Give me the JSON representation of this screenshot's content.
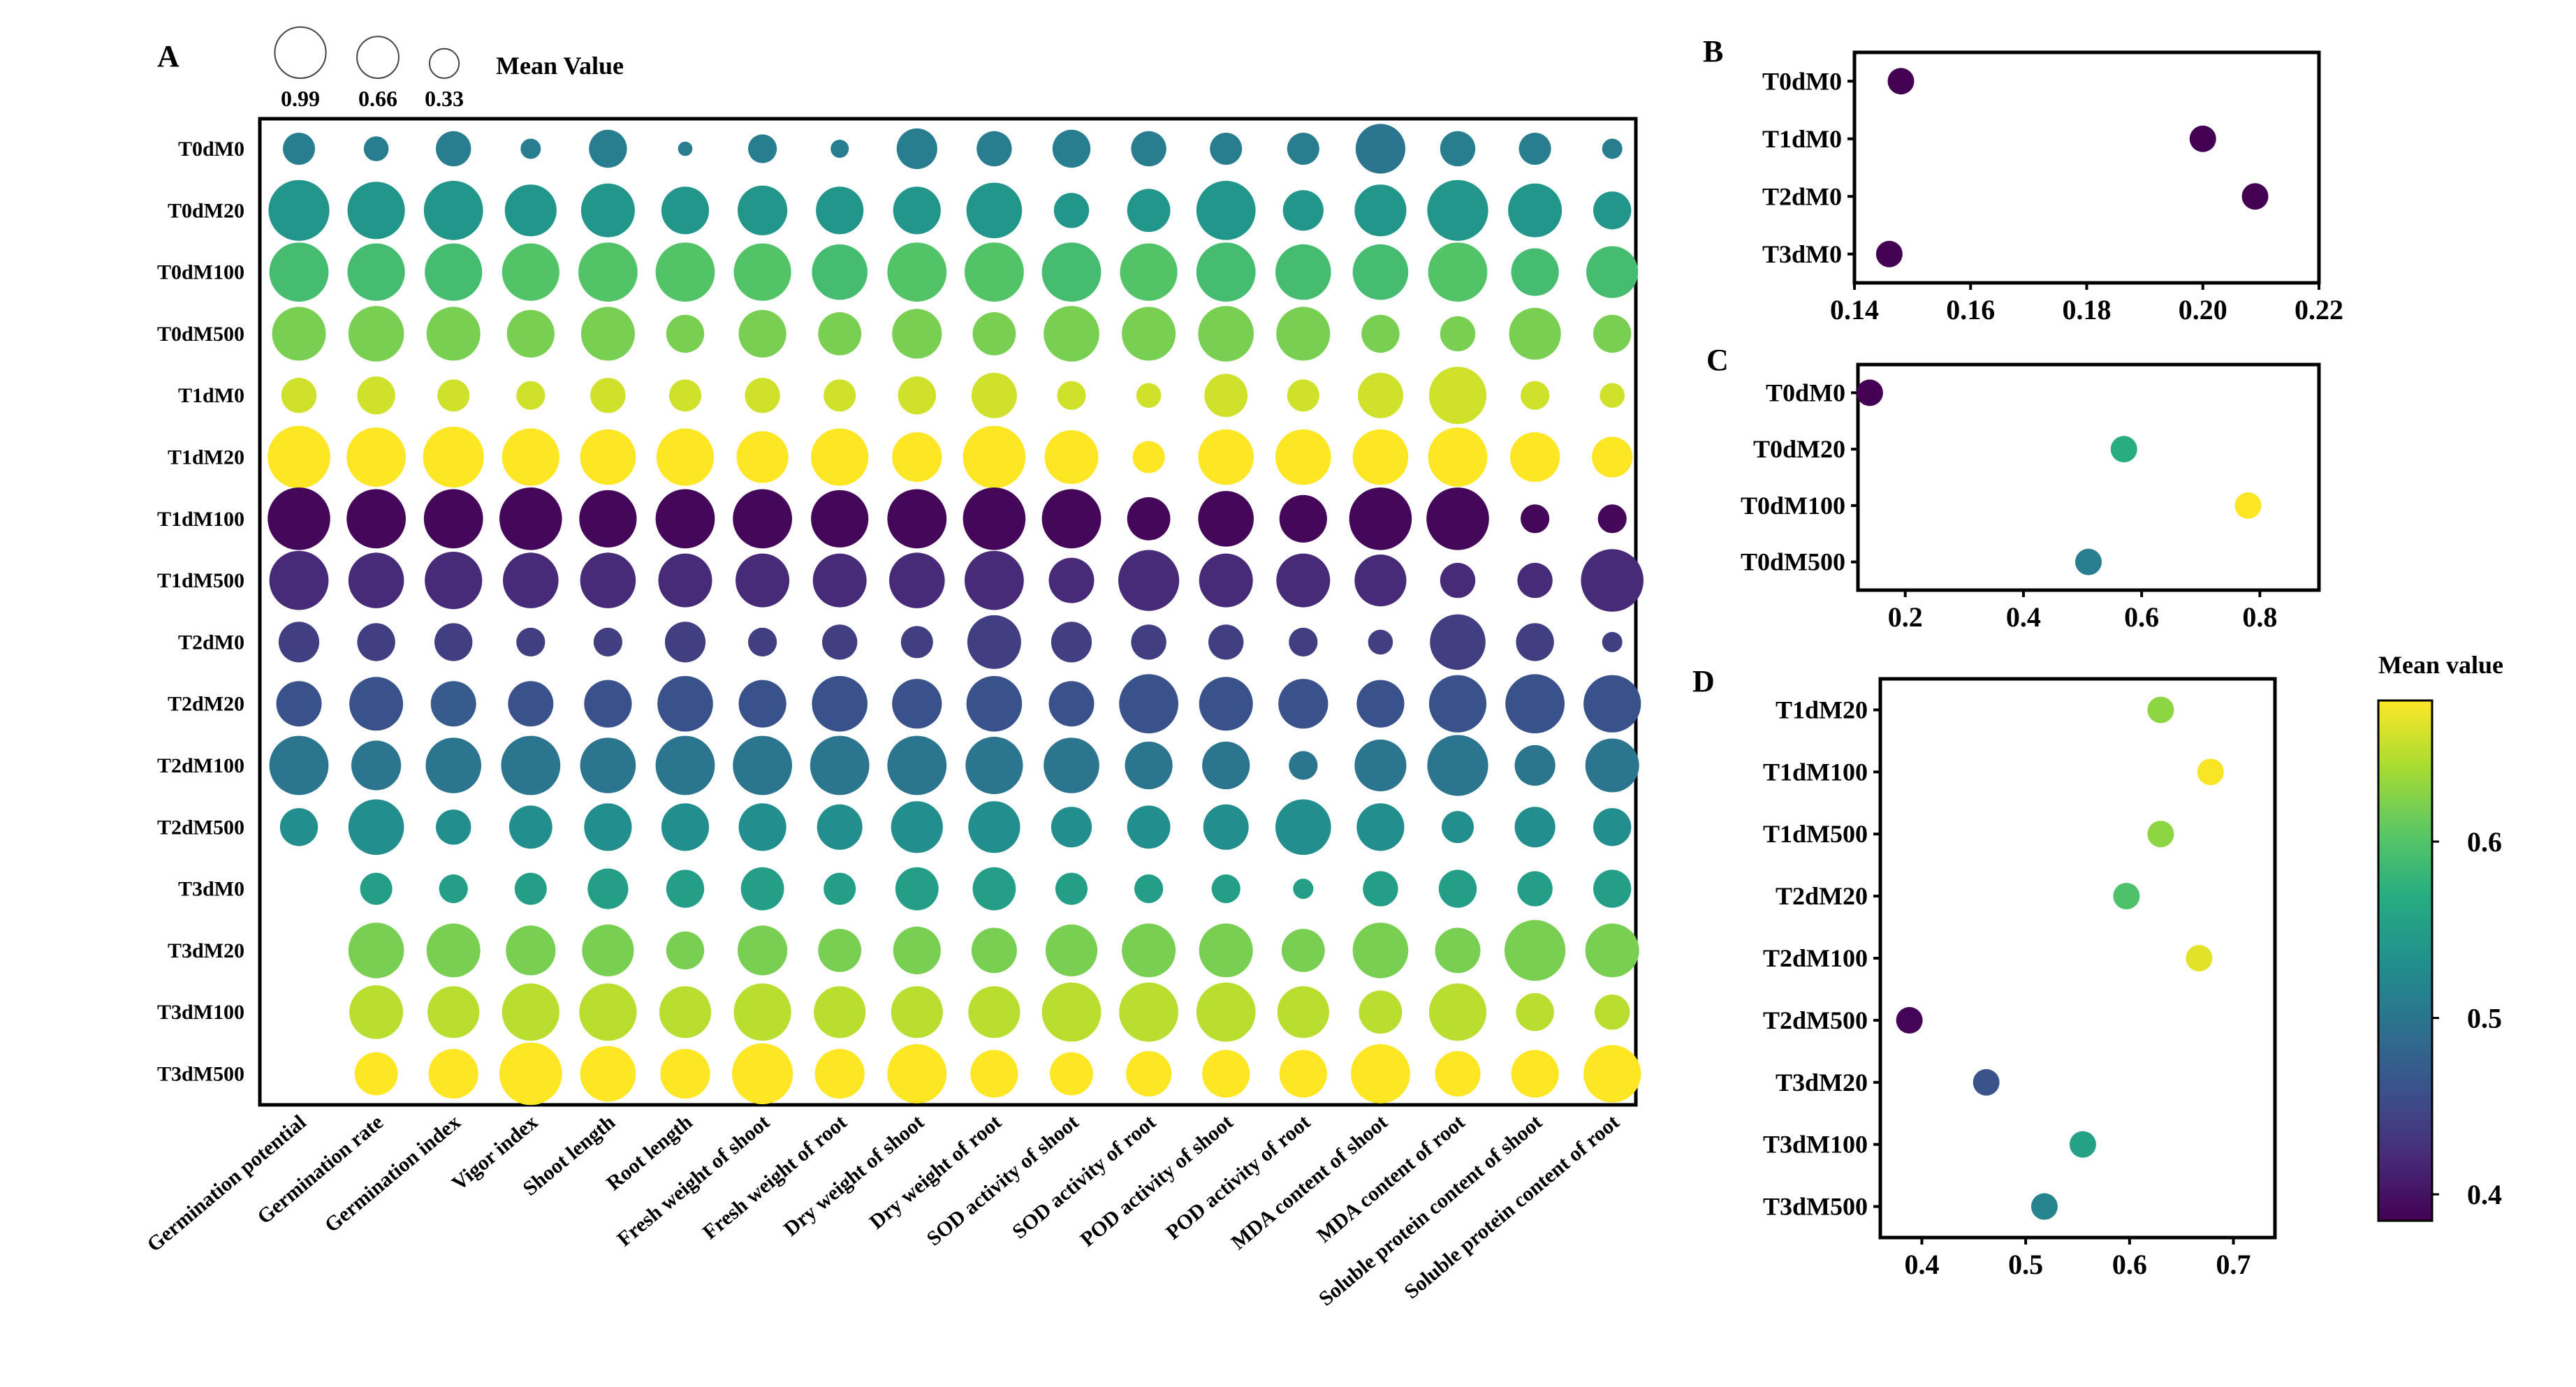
{
  "chart_data": [
    {
      "panel": "A",
      "type": "scatter",
      "subtype": "bubble-matrix",
      "rows": [
        "T0dM0",
        "T0dM20",
        "T0dM100",
        "T0dM500",
        "T1dM0",
        "T1dM20",
        "T1dM100",
        "T1dM500",
        "T2dM0",
        "T2dM20",
        "T2dM100",
        "T2dM500",
        "T3dM0",
        "T3dM20",
        "T3dM100",
        "T3dM500"
      ],
      "columns": [
        "Germination potential",
        "Germination rate",
        "Germination index",
        "Vigor index",
        "Shoot length",
        "Root length",
        "Fresh weight of shoot",
        "Fresh weight of root",
        "Dry weight of shoot",
        "Dry weight of root",
        "SOD activity of shoot",
        "SOD activity of root",
        "POD activity of shoot",
        "POD activity of root",
        "MDA content of shoot",
        "MDA content of root",
        "Soluble protein content of shoot",
        "Soluble protein content of root"
      ],
      "size_values": [
        [
          0.25,
          0.15,
          0.3,
          0.1,
          0.35,
          0.05,
          0.2,
          0.08,
          0.4,
          0.3,
          0.35,
          0.3,
          0.25,
          0.25,
          0.6,
          0.3,
          0.25,
          0.1
        ],
        [
          0.9,
          0.8,
          0.85,
          0.65,
          0.7,
          0.55,
          0.6,
          0.55,
          0.55,
          0.75,
          0.3,
          0.45,
          0.85,
          0.4,
          0.65,
          0.9,
          0.7,
          0.35
        ],
        [
          0.85,
          0.8,
          0.8,
          0.8,
          0.85,
          0.85,
          0.8,
          0.75,
          0.85,
          0.85,
          0.85,
          0.8,
          0.85,
          0.75,
          0.75,
          0.85,
          0.55,
          0.65
        ],
        [
          0.7,
          0.75,
          0.7,
          0.55,
          0.7,
          0.35,
          0.55,
          0.45,
          0.6,
          0.45,
          0.75,
          0.7,
          0.75,
          0.7,
          0.35,
          0.3,
          0.65,
          0.35
        ],
        [
          0.3,
          0.35,
          0.25,
          0.2,
          0.3,
          0.25,
          0.3,
          0.25,
          0.35,
          0.5,
          0.2,
          0.15,
          0.45,
          0.25,
          0.5,
          0.8,
          0.2,
          0.15
        ],
        [
          0.95,
          0.85,
          0.9,
          0.8,
          0.75,
          0.8,
          0.65,
          0.8,
          0.6,
          0.95,
          0.7,
          0.25,
          0.75,
          0.75,
          0.75,
          0.85,
          0.6,
          0.4
        ],
        [
          0.95,
          0.85,
          0.85,
          0.95,
          0.8,
          0.85,
          0.85,
          0.8,
          0.85,
          0.95,
          0.85,
          0.45,
          0.75,
          0.55,
          0.95,
          0.95,
          0.2,
          0.2
        ],
        [
          0.85,
          0.75,
          0.8,
          0.75,
          0.75,
          0.7,
          0.7,
          0.7,
          0.75,
          0.85,
          0.5,
          0.9,
          0.7,
          0.7,
          0.65,
          0.3,
          0.3,
          0.95
        ],
        [
          0.4,
          0.35,
          0.35,
          0.2,
          0.2,
          0.4,
          0.2,
          0.3,
          0.25,
          0.7,
          0.4,
          0.3,
          0.3,
          0.2,
          0.15,
          0.75,
          0.35,
          0.1
        ],
        [
          0.5,
          0.7,
          0.5,
          0.5,
          0.55,
          0.75,
          0.55,
          0.75,
          0.6,
          0.75,
          0.5,
          0.85,
          0.7,
          0.6,
          0.55,
          0.8,
          0.85,
          0.8
        ],
        [
          0.85,
          0.6,
          0.75,
          0.85,
          0.75,
          0.85,
          0.85,
          0.85,
          0.85,
          0.8,
          0.75,
          0.55,
          0.55,
          0.2,
          0.65,
          0.9,
          0.4,
          0.7
        ],
        [
          0.35,
          0.75,
          0.3,
          0.45,
          0.55,
          0.55,
          0.55,
          0.5,
          0.65,
          0.65,
          0.4,
          0.45,
          0.5,
          0.75,
          0.55,
          0.25,
          0.4,
          0.35
        ],
        [
          0,
          0.25,
          0.2,
          0.25,
          0.4,
          0.35,
          0.45,
          0.25,
          0.45,
          0.45,
          0.25,
          0.2,
          0.2,
          0.1,
          0.3,
          0.35,
          0.3,
          0.35
        ],
        [
          0,
          0.75,
          0.7,
          0.6,
          0.65,
          0.35,
          0.6,
          0.45,
          0.55,
          0.5,
          0.65,
          0.7,
          0.7,
          0.45,
          0.75,
          0.5,
          0.9,
          0.7
        ],
        [
          0,
          0.7,
          0.65,
          0.8,
          0.8,
          0.65,
          0.8,
          0.65,
          0.65,
          0.65,
          0.85,
          0.85,
          0.85,
          0.65,
          0.45,
          0.8,
          0.35,
          0.3
        ],
        [
          0,
          0.45,
          0.6,
          0.95,
          0.75,
          0.6,
          0.9,
          0.6,
          0.85,
          0.55,
          0.45,
          0.5,
          0.55,
          0.55,
          0.85,
          0.5,
          0.55,
          0.8
        ]
      ],
      "color_values": [
        [
          0.51,
          0.51,
          0.51,
          0.51,
          0.51,
          0.51,
          0.51,
          0.51,
          0.51,
          0.51,
          0.51,
          0.51,
          0.51,
          0.51,
          0.5,
          0.51,
          0.51,
          0.51
        ],
        [
          0.54,
          0.54,
          0.54,
          0.54,
          0.54,
          0.54,
          0.54,
          0.54,
          0.54,
          0.54,
          0.54,
          0.54,
          0.54,
          0.54,
          0.54,
          0.54,
          0.54,
          0.54
        ],
        [
          0.59,
          0.59,
          0.59,
          0.6,
          0.6,
          0.6,
          0.6,
          0.59,
          0.6,
          0.6,
          0.59,
          0.6,
          0.59,
          0.59,
          0.59,
          0.6,
          0.59,
          0.59
        ],
        [
          0.62,
          0.62,
          0.62,
          0.62,
          0.62,
          0.62,
          0.62,
          0.62,
          0.62,
          0.62,
          0.62,
          0.62,
          0.62,
          0.62,
          0.62,
          0.62,
          0.62,
          0.62
        ],
        [
          0.66,
          0.66,
          0.66,
          0.66,
          0.66,
          0.66,
          0.66,
          0.66,
          0.66,
          0.66,
          0.66,
          0.66,
          0.66,
          0.66,
          0.66,
          0.66,
          0.66,
          0.66
        ],
        [
          0.69,
          0.69,
          0.69,
          0.69,
          0.69,
          0.69,
          0.69,
          0.69,
          0.69,
          0.69,
          0.69,
          0.69,
          0.69,
          0.69,
          0.69,
          0.69,
          0.69,
          0.69
        ],
        [
          0.39,
          0.39,
          0.39,
          0.39,
          0.39,
          0.39,
          0.39,
          0.39,
          0.39,
          0.39,
          0.39,
          0.39,
          0.39,
          0.39,
          0.39,
          0.39,
          0.39,
          0.39
        ],
        [
          0.42,
          0.42,
          0.42,
          0.42,
          0.42,
          0.42,
          0.42,
          0.42,
          0.42,
          0.42,
          0.42,
          0.42,
          0.42,
          0.42,
          0.42,
          0.42,
          0.42,
          0.42
        ],
        [
          0.44,
          0.44,
          0.44,
          0.44,
          0.44,
          0.44,
          0.44,
          0.44,
          0.44,
          0.44,
          0.44,
          0.44,
          0.44,
          0.44,
          0.44,
          0.44,
          0.44,
          0.44
        ],
        [
          0.46,
          0.46,
          0.47,
          0.46,
          0.46,
          0.46,
          0.46,
          0.46,
          0.46,
          0.46,
          0.46,
          0.46,
          0.46,
          0.46,
          0.46,
          0.46,
          0.46,
          0.46
        ],
        [
          0.5,
          0.5,
          0.5,
          0.5,
          0.5,
          0.5,
          0.5,
          0.5,
          0.5,
          0.5,
          0.5,
          0.5,
          0.5,
          0.5,
          0.5,
          0.5,
          0.5,
          0.5
        ],
        [
          0.53,
          0.53,
          0.53,
          0.53,
          0.53,
          0.53,
          0.53,
          0.53,
          0.53,
          0.53,
          0.53,
          0.53,
          0.53,
          0.53,
          0.53,
          0.53,
          0.53,
          0.53
        ],
        [
          0.55,
          0.55,
          0.55,
          0.55,
          0.55,
          0.55,
          0.55,
          0.55,
          0.55,
          0.55,
          0.55,
          0.55,
          0.55,
          0.55,
          0.55,
          0.55,
          0.55,
          0.55
        ],
        [
          0.62,
          0.62,
          0.62,
          0.62,
          0.62,
          0.62,
          0.62,
          0.62,
          0.62,
          0.62,
          0.62,
          0.62,
          0.62,
          0.62,
          0.62,
          0.62,
          0.62,
          0.62
        ],
        [
          0.65,
          0.65,
          0.65,
          0.65,
          0.65,
          0.65,
          0.65,
          0.65,
          0.65,
          0.65,
          0.65,
          0.65,
          0.65,
          0.65,
          0.65,
          0.65,
          0.65,
          0.65
        ],
        [
          0.68,
          0.68,
          0.68,
          0.68,
          0.68,
          0.68,
          0.68,
          0.68,
          0.68,
          0.68,
          0.68,
          0.68,
          0.68,
          0.68,
          0.68,
          0.68,
          0.68,
          0.68
        ]
      ],
      "size_legend": {
        "title": "Mean Value",
        "labels": [
          "0.99",
          "0.66",
          "0.33"
        ],
        "values": [
          0.99,
          0.66,
          0.33
        ]
      }
    },
    {
      "panel": "B",
      "type": "scatter",
      "categories": [
        "T0dM0",
        "T1dM0",
        "T2dM0",
        "T3dM0"
      ],
      "values": [
        0.148,
        0.2,
        0.209,
        0.146
      ],
      "xlim": [
        0.14,
        0.22
      ],
      "xticks": [
        0.14,
        0.16,
        0.18,
        0.2,
        0.22
      ],
      "xtick_labels": [
        "0.14",
        "0.16",
        "0.18",
        "0.20",
        "0.22"
      ]
    },
    {
      "panel": "C",
      "type": "scatter",
      "categories": [
        "T0dM0",
        "T0dM20",
        "T0dM100",
        "T0dM500"
      ],
      "values": [
        0.14,
        0.57,
        0.78,
        0.51
      ],
      "xlim": [
        0.12,
        0.9
      ],
      "xticks": [
        0.2,
        0.4,
        0.6,
        0.8
      ],
      "xtick_labels": [
        "0.2",
        "0.4",
        "0.6",
        "0.8"
      ]
    },
    {
      "panel": "D",
      "type": "scatter",
      "categories": [
        "T1dM20",
        "T1dM100",
        "T1dM500",
        "T2dM20",
        "T2dM100",
        "T2dM500",
        "T3dM20",
        "T3dM100",
        "T3dM500"
      ],
      "values": [
        0.63,
        0.678,
        0.63,
        0.597,
        0.667,
        0.388,
        0.462,
        0.555,
        0.518
      ],
      "xlim": [
        0.36,
        0.74
      ],
      "xticks": [
        0.4,
        0.5,
        0.6,
        0.7
      ],
      "xtick_labels": [
        "0.4",
        "0.5",
        "0.6",
        "0.7"
      ]
    },
    {
      "type": "colorbar",
      "title": "Mean value",
      "range": [
        0.385,
        0.68
      ],
      "ticks": [
        0.4,
        0.5,
        0.6
      ],
      "tick_labels": [
        "0.4",
        "0.5",
        "0.6"
      ]
    }
  ]
}
